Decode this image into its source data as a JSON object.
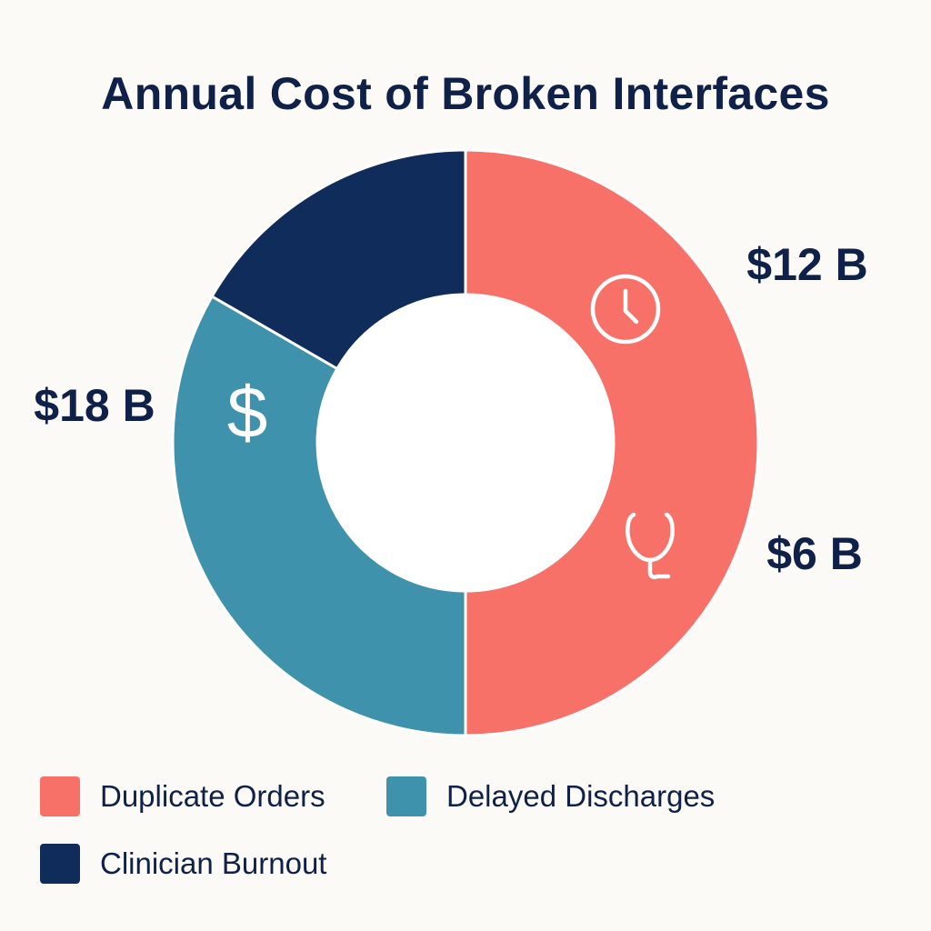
{
  "title": "Annual Cost of Broken Interfaces",
  "chart_data": {
    "type": "pie",
    "variant": "donut",
    "title": "Annual Cost of Broken Interfaces",
    "unit": "B",
    "categories": [
      "Duplicate Orders",
      "Delayed Discharges",
      "Clinician Burnout"
    ],
    "values": [
      18,
      12,
      6
    ],
    "labels": [
      "$18 B",
      "$12 B",
      "$6 B"
    ],
    "colors": [
      "#f87168",
      "#3e92ab",
      "#0f2c5a"
    ],
    "icons": [
      "dollar-sign-icon",
      "clock-icon",
      "stethoscope-icon"
    ],
    "legend_position": "bottom"
  },
  "legend": [
    {
      "label": "Duplicate Orders",
      "color": "#f87168"
    },
    {
      "label": "Delayed Discharges",
      "color": "#3e92ab"
    },
    {
      "label": "Clinician Burnout",
      "color": "#0f2c5a"
    }
  ]
}
